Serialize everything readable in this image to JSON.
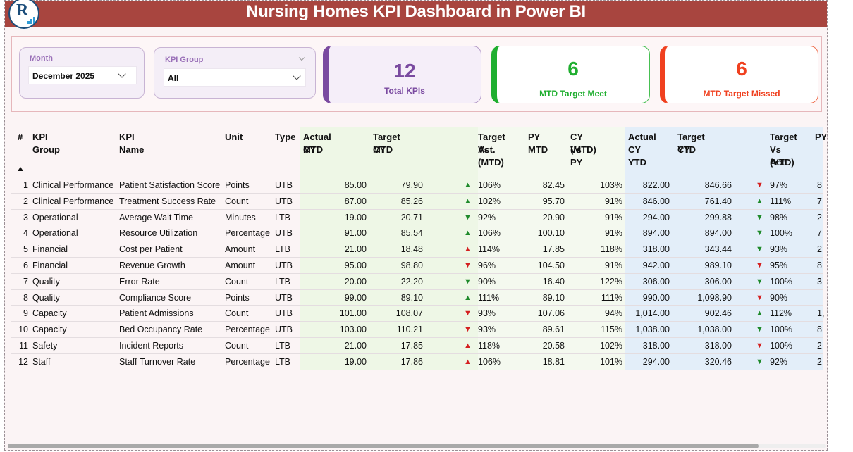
{
  "header": {
    "title": "Nursing Homes KPI Dashboard in Power BI"
  },
  "filters": {
    "month": {
      "label": "Month",
      "value": "December 2025"
    },
    "kpi_group": {
      "label": "KPI Group",
      "value": "All"
    }
  },
  "cards": {
    "total": {
      "value": "12",
      "label": "Total KPIs",
      "color": "#7a4aa0"
    },
    "met": {
      "value": "6",
      "label": "MTD Target Meet",
      "color": "#1fae2f"
    },
    "missed": {
      "value": "6",
      "label": "MTD Target Missed",
      "color": "#f0401f"
    }
  },
  "table": {
    "headers": {
      "num": "#",
      "group": "KPI Group",
      "name": "KPI Name",
      "unit": "Unit",
      "type": "Type",
      "actual_mtd_1": "Actual CY",
      "actual_mtd_2": "MTD",
      "target_mtd_1": "Target CY",
      "target_mtd_2": "MTD",
      "tva_mtd_1": "Target Vs",
      "tva_mtd_2": "Act.",
      "tva_mtd_3": "(MTD)",
      "py_mtd": "PY MTD",
      "cyvspy_1": "CY Vs PY",
      "cyvspy_2": "(MTD)",
      "actual_ytd_1": "Actual",
      "actual_ytd_2": "CY YTD",
      "target_ytd_1": "Target CY",
      "target_ytd_2": "YTD",
      "tva_ytd_1": "Target",
      "tva_ytd_2": "Vs Act.",
      "tva_ytd_3": "(YTD)",
      "py_cut": "PY"
    },
    "rows": [
      {
        "n": "1",
        "group": "Clinical Performance",
        "name": "Patient Satisfaction Score",
        "unit": "Points",
        "type": "UTB",
        "act_mtd": "85.00",
        "tgt_mtd": "79.90",
        "mtd_dir": "up",
        "mtd_pct": "106%",
        "py_mtd": "82.45",
        "cy_py": "103%",
        "act_ytd": "822.00",
        "tgt_ytd": "846.66",
        "ytd_dir": "down",
        "ytd_pct": "97%",
        "py_cut": "8"
      },
      {
        "n": "2",
        "group": "Clinical Performance",
        "name": "Treatment Success Rate",
        "unit": "Count",
        "type": "UTB",
        "act_mtd": "87.00",
        "tgt_mtd": "85.26",
        "mtd_dir": "up",
        "mtd_pct": "102%",
        "py_mtd": "95.70",
        "cy_py": "91%",
        "act_ytd": "846.00",
        "tgt_ytd": "761.40",
        "ytd_dir": "up",
        "ytd_pct": "111%",
        "py_cut": "7"
      },
      {
        "n": "3",
        "group": "Operational",
        "name": "Average Wait Time",
        "unit": "Minutes",
        "type": "LTB",
        "act_mtd": "19.00",
        "tgt_mtd": "20.71",
        "mtd_dir": "down-good",
        "mtd_pct": "92%",
        "py_mtd": "20.90",
        "cy_py": "91%",
        "act_ytd": "294.00",
        "tgt_ytd": "299.88",
        "ytd_dir": "down-good",
        "ytd_pct": "98%",
        "py_cut": "2"
      },
      {
        "n": "4",
        "group": "Operational",
        "name": "Resource Utilization",
        "unit": "Percentage",
        "type": "UTB",
        "act_mtd": "91.00",
        "tgt_mtd": "85.54",
        "mtd_dir": "up",
        "mtd_pct": "106%",
        "py_mtd": "100.10",
        "cy_py": "91%",
        "act_ytd": "894.00",
        "tgt_ytd": "894.00",
        "ytd_dir": "down-good",
        "ytd_pct": "100%",
        "py_cut": "7"
      },
      {
        "n": "5",
        "group": "Financial",
        "name": "Cost per Patient",
        "unit": "Amount",
        "type": "LTB",
        "act_mtd": "21.00",
        "tgt_mtd": "18.48",
        "mtd_dir": "up-bad",
        "mtd_pct": "114%",
        "py_mtd": "17.85",
        "cy_py": "118%",
        "act_ytd": "318.00",
        "tgt_ytd": "343.44",
        "ytd_dir": "down-good",
        "ytd_pct": "93%",
        "py_cut": "2"
      },
      {
        "n": "6",
        "group": "Financial",
        "name": "Revenue Growth",
        "unit": "Amount",
        "type": "UTB",
        "act_mtd": "95.00",
        "tgt_mtd": "98.80",
        "mtd_dir": "down",
        "mtd_pct": "96%",
        "py_mtd": "104.50",
        "cy_py": "91%",
        "act_ytd": "942.00",
        "tgt_ytd": "989.10",
        "ytd_dir": "down",
        "ytd_pct": "95%",
        "py_cut": "8"
      },
      {
        "n": "7",
        "group": "Quality",
        "name": "Error Rate",
        "unit": "Count",
        "type": "LTB",
        "act_mtd": "20.00",
        "tgt_mtd": "22.20",
        "mtd_dir": "down-good",
        "mtd_pct": "90%",
        "py_mtd": "16.40",
        "cy_py": "122%",
        "act_ytd": "306.00",
        "tgt_ytd": "306.00",
        "ytd_dir": "down-good",
        "ytd_pct": "100%",
        "py_cut": "3"
      },
      {
        "n": "8",
        "group": "Quality",
        "name": "Compliance Score",
        "unit": "Points",
        "type": "UTB",
        "act_mtd": "99.00",
        "tgt_mtd": "89.10",
        "mtd_dir": "up",
        "mtd_pct": "111%",
        "py_mtd": "89.10",
        "cy_py": "111%",
        "act_ytd": "990.00",
        "tgt_ytd": "1,098.90",
        "ytd_dir": "down",
        "ytd_pct": "90%",
        "py_cut": ""
      },
      {
        "n": "9",
        "group": "Capacity",
        "name": "Patient Admissions",
        "unit": "Count",
        "type": "UTB",
        "act_mtd": "101.00",
        "tgt_mtd": "108.07",
        "mtd_dir": "down",
        "mtd_pct": "93%",
        "py_mtd": "107.06",
        "cy_py": "94%",
        "act_ytd": "1,014.00",
        "tgt_ytd": "902.46",
        "ytd_dir": "up",
        "ytd_pct": "112%",
        "py_cut": "1,"
      },
      {
        "n": "10",
        "group": "Capacity",
        "name": "Bed Occupancy Rate",
        "unit": "Percentage",
        "type": "UTB",
        "act_mtd": "103.00",
        "tgt_mtd": "110.21",
        "mtd_dir": "down",
        "mtd_pct": "93%",
        "py_mtd": "89.61",
        "cy_py": "115%",
        "act_ytd": "1,038.00",
        "tgt_ytd": "1,038.00",
        "ytd_dir": "down-good",
        "ytd_pct": "100%",
        "py_cut": "8"
      },
      {
        "n": "11",
        "group": "Safety",
        "name": "Incident Reports",
        "unit": "Count",
        "type": "LTB",
        "act_mtd": "21.00",
        "tgt_mtd": "17.85",
        "mtd_dir": "up-bad",
        "mtd_pct": "118%",
        "py_mtd": "20.58",
        "cy_py": "102%",
        "act_ytd": "318.00",
        "tgt_ytd": "318.00",
        "ytd_dir": "down",
        "ytd_pct": "100%",
        "py_cut": "2"
      },
      {
        "n": "12",
        "group": "Staff",
        "name": "Staff Turnover Rate",
        "unit": "Percentage",
        "type": "LTB",
        "act_mtd": "19.00",
        "tgt_mtd": "17.86",
        "mtd_dir": "up-bad",
        "mtd_pct": "106%",
        "py_mtd": "18.81",
        "cy_py": "101%",
        "act_ytd": "294.00",
        "tgt_ytd": "320.46",
        "ytd_dir": "down-good",
        "ytd_pct": "92%",
        "py_cut": "2"
      }
    ]
  }
}
